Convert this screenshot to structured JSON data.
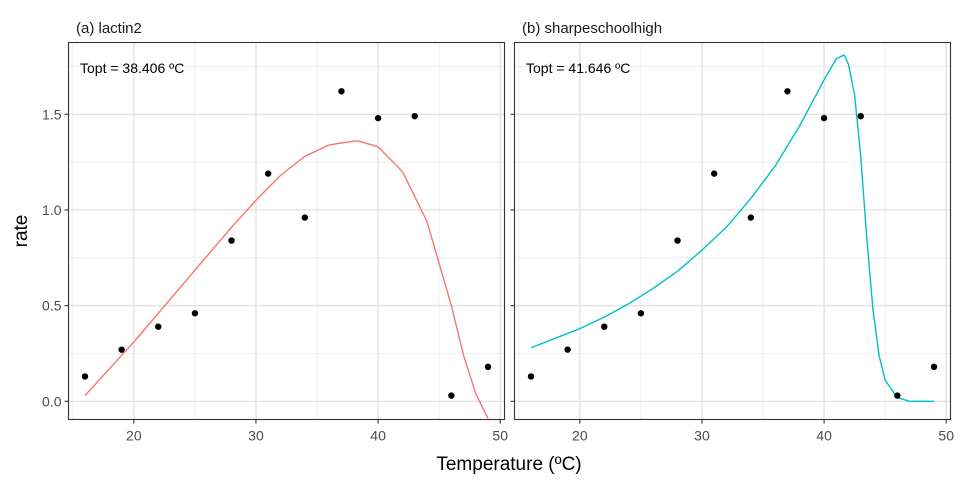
{
  "figure": {
    "xlabel": "Temperature (ºC)",
    "ylabel": "rate"
  },
  "chart_data": [
    {
      "type": "scatter",
      "title": "(a) lactin2",
      "annotation": "Topt = 38.406 ºC",
      "xlabel": "Temperature (ºC)",
      "ylabel": "rate",
      "xlim": [
        14.65,
        50.35
      ],
      "ylim": [
        -0.095,
        1.875
      ],
      "xticks": [
        20,
        30,
        40,
        50
      ],
      "yticks": [
        0.0,
        0.5,
        1.0,
        1.5
      ],
      "ytick_labels": [
        "0.0",
        "0.5",
        "1.0",
        "1.5"
      ],
      "grid": true,
      "fit_color": "#F8766D",
      "points": {
        "x": [
          16,
          19,
          22,
          25,
          28,
          31,
          34,
          37,
          40,
          43,
          46,
          49
        ],
        "y": [
          0.13,
          0.27,
          0.39,
          0.46,
          0.84,
          1.19,
          0.96,
          1.62,
          1.48,
          1.49,
          0.03,
          0.18
        ]
      },
      "fit_curve": {
        "x": [
          16,
          18,
          20,
          22,
          24,
          26,
          28,
          30,
          32,
          34,
          36,
          38,
          38.4,
          40,
          42,
          44,
          46,
          47,
          48,
          49
        ],
        "y": [
          0.03,
          0.17,
          0.31,
          0.46,
          0.61,
          0.76,
          0.91,
          1.05,
          1.18,
          1.28,
          1.34,
          1.36,
          1.36,
          1.33,
          1.2,
          0.94,
          0.5,
          0.24,
          0.04,
          -0.09
        ]
      }
    },
    {
      "type": "scatter",
      "title": "(b) sharpeschoolhigh",
      "annotation": "Topt = 41.646 ºC",
      "xlabel": "Temperature (ºC)",
      "ylabel": "rate",
      "xlim": [
        14.65,
        50.35
      ],
      "ylim": [
        -0.095,
        1.875
      ],
      "xticks": [
        20,
        30,
        40,
        50
      ],
      "yticks": [
        0.0,
        0.5,
        1.0,
        1.5
      ],
      "ytick_labels": [
        "0.0",
        "0.5",
        "1.0",
        "1.5"
      ],
      "grid": true,
      "fit_color": "#00BFC4",
      "points": {
        "x": [
          16,
          19,
          22,
          25,
          28,
          31,
          34,
          37,
          40,
          43,
          46,
          49
        ],
        "y": [
          0.13,
          0.27,
          0.39,
          0.46,
          0.84,
          1.19,
          0.96,
          1.62,
          1.48,
          1.49,
          0.03,
          0.18
        ]
      },
      "fit_curve": {
        "x": [
          16,
          18,
          20,
          22,
          24,
          26,
          28,
          30,
          32,
          34,
          36,
          38,
          39,
          40,
          41,
          41.646,
          42,
          42.5,
          43,
          43.5,
          44,
          44.5,
          45,
          46,
          47,
          48,
          49
        ],
        "y": [
          0.28,
          0.33,
          0.38,
          0.44,
          0.51,
          0.59,
          0.68,
          0.79,
          0.91,
          1.06,
          1.23,
          1.44,
          1.56,
          1.68,
          1.79,
          1.81,
          1.76,
          1.6,
          1.28,
          0.85,
          0.48,
          0.24,
          0.11,
          0.02,
          0.0,
          0.0,
          0.0
        ]
      }
    }
  ]
}
